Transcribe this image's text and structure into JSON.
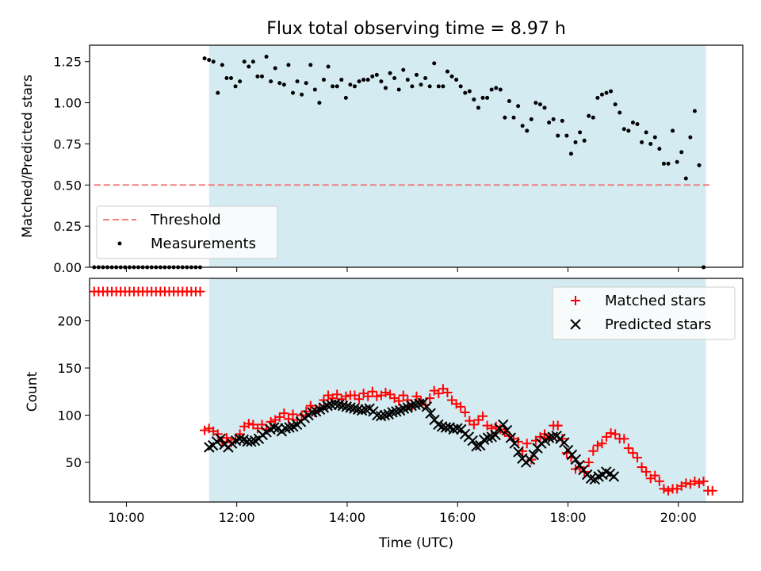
{
  "chart_data": [
    {
      "type": "scatter",
      "title": "Flux total observing time = 8.97 h",
      "ylabel": "Matched/Predicted stars",
      "xlabel": "",
      "xlim": [
        "09:20",
        "21:10"
      ],
      "ylim": [
        0,
        1.35
      ],
      "yticks": [
        "0.00",
        "0.25",
        "0.50",
        "0.75",
        "1.00",
        "1.25"
      ],
      "grid": false,
      "legend_position": "lower-left",
      "observing_window": [
        "11:30",
        "20:30"
      ],
      "colors": {
        "shade": "#d4ebf1",
        "threshold": "#f08080",
        "measurements": "#000000"
      },
      "threshold": {
        "name": "Threshold",
        "value": 0.5,
        "x_range": [
          "09:25",
          "20:35"
        ]
      },
      "measurements": {
        "name": "Measurements",
        "x_start": "09:25",
        "x_step_min": 4.8,
        "values": [
          0,
          0,
          0,
          0,
          0,
          0,
          0,
          0,
          0,
          0,
          0,
          0,
          0,
          0,
          0,
          0,
          0,
          0,
          0,
          0,
          0,
          0,
          0,
          0,
          0,
          1.27,
          1.26,
          1.25,
          1.06,
          1.23,
          1.15,
          1.15,
          1.1,
          1.13,
          1.25,
          1.22,
          1.25,
          1.16,
          1.16,
          1.28,
          1.13,
          1.21,
          1.12,
          1.11,
          1.23,
          1.06,
          1.13,
          1.05,
          1.12,
          1.23,
          1.08,
          1.0,
          1.14,
          1.22,
          1.1,
          1.1,
          1.14,
          1.03,
          1.11,
          1.1,
          1.13,
          1.14,
          1.14,
          1.16,
          1.17,
          1.13,
          1.09,
          1.18,
          1.15,
          1.08,
          1.2,
          1.14,
          1.1,
          1.17,
          1.11,
          1.15,
          1.1,
          1.24,
          1.1,
          1.1,
          1.19,
          1.16,
          1.14,
          1.1,
          1.06,
          1.07,
          1.02,
          0.97,
          1.03,
          1.03,
          1.08,
          1.09,
          1.08,
          0.91,
          1.01,
          0.91,
          0.98,
          0.86,
          0.83,
          0.9,
          1.0,
          0.99,
          0.97,
          0.88,
          0.9,
          0.8,
          0.89,
          0.8,
          0.69,
          0.76,
          0.82,
          0.77,
          0.92,
          0.91,
          1.03,
          1.05,
          1.06,
          1.07,
          0.99,
          0.94,
          0.84,
          0.83,
          0.88,
          0.87,
          0.76,
          0.82,
          0.75,
          0.79,
          0.72,
          0.63,
          0.63,
          0.83,
          0.64,
          0.7,
          0.54,
          0.79,
          0.95,
          0.62,
          0
        ]
      }
    },
    {
      "type": "scatter",
      "title": "",
      "xlabel": "Time (UTC)",
      "ylabel": "Count",
      "xlim": [
        "09:20",
        "21:10"
      ],
      "ylim": [
        8,
        245
      ],
      "xticks": [
        "10:00",
        "12:00",
        "14:00",
        "16:00",
        "18:00",
        "20:00"
      ],
      "yticks": [
        "50",
        "100",
        "150",
        "200"
      ],
      "grid": false,
      "legend_position": "upper-right",
      "observing_window": [
        "11:30",
        "20:30"
      ],
      "colors": {
        "shade": "#d4ebf1",
        "matched": "#ff0000",
        "predicted": "#000000"
      },
      "series": [
        {
          "name": "Matched stars",
          "marker": "plus",
          "x_start": "09:25",
          "x_step_min": 4.8,
          "values": [
            231,
            231,
            231,
            231,
            231,
            231,
            231,
            231,
            231,
            231,
            231,
            231,
            231,
            231,
            231,
            231,
            231,
            231,
            231,
            231,
            231,
            231,
            231,
            231,
            231,
            84,
            86,
            83,
            80,
            72,
            76,
            71,
            74,
            80,
            88,
            91,
            90,
            86,
            90,
            85,
            93,
            95,
            98,
            102,
            96,
            101,
            95,
            100,
            104,
            110,
            103,
            108,
            116,
            121,
            118,
            122,
            117,
            120,
            121,
            121,
            117,
            123,
            120,
            125,
            120,
            121,
            124,
            122,
            118,
            115,
            121,
            116,
            110,
            120,
            115,
            111,
            118,
            126,
            123,
            128,
            124,
            116,
            112,
            109,
            103,
            94,
            90,
            95,
            99,
            89,
            86,
            88,
            85,
            82,
            78,
            75,
            72,
            62,
            70,
            53,
            73,
            77,
            80,
            76,
            89,
            89,
            75,
            60,
            55,
            43,
            45,
            40,
            50,
            62,
            68,
            70,
            77,
            81,
            80,
            75,
            75,
            65,
            60,
            55,
            45,
            40,
            33,
            36,
            30,
            22,
            20,
            22,
            22,
            25,
            28,
            27,
            30,
            28,
            30,
            20,
            20
          ]
        },
        {
          "name": "Predicted stars",
          "marker": "x",
          "x_start": "11:30",
          "x_step_min": 4.15,
          "values": [
            66,
            68,
            72,
            75,
            69,
            66,
            70,
            73,
            75,
            74,
            72,
            72,
            73,
            75,
            79,
            82,
            85,
            87,
            86,
            83,
            86,
            87,
            88,
            90,
            93,
            97,
            100,
            103,
            104,
            106,
            108,
            110,
            111,
            112,
            111,
            110,
            109,
            108,
            107,
            106,
            105,
            106,
            107,
            104,
            100,
            99,
            100,
            101,
            103,
            104,
            105,
            107,
            108,
            110,
            111,
            112,
            113,
            109,
            102,
            95,
            90,
            88,
            87,
            87,
            85,
            86,
            85,
            80,
            77,
            73,
            67,
            68,
            74,
            76,
            77,
            79,
            86,
            90,
            84,
            76,
            70,
            61,
            54,
            50,
            53,
            58,
            65,
            70,
            73,
            76,
            77,
            78,
            75,
            71,
            63,
            58,
            53,
            47,
            42,
            37,
            33,
            32,
            35,
            37,
            40,
            38,
            35
          ]
        }
      ]
    }
  ]
}
